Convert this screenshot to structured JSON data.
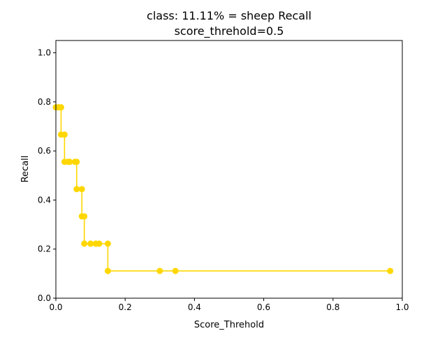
{
  "chart_data": {
    "type": "line",
    "title": "class: 11.11% = sheep Recall",
    "subtitle": "score_threhold=0.5",
    "xlabel": "Score_Threhold",
    "ylabel": "Recall",
    "xlim": [
      0,
      1.0
    ],
    "ylim": [
      0,
      1.05
    ],
    "x_ticks": [
      0.0,
      0.2,
      0.4,
      0.6,
      0.8,
      1.0
    ],
    "x_tick_labels": [
      "0.0",
      "0.2",
      "0.4",
      "0.6",
      "0.8",
      "1.0"
    ],
    "y_ticks": [
      0.0,
      0.2,
      0.4,
      0.6,
      0.8,
      1.0
    ],
    "y_tick_labels": [
      "0.0",
      "0.2",
      "0.4",
      "0.6",
      "0.8",
      "1.0"
    ],
    "grid": false,
    "series": [
      {
        "color": "#FFD700",
        "marker": "circle",
        "x": [
          0.0,
          0.008,
          0.015,
          0.015,
          0.025,
          0.025,
          0.035,
          0.04,
          0.055,
          0.06,
          0.06,
          0.075,
          0.075,
          0.082,
          0.082,
          0.1,
          0.115,
          0.125,
          0.15,
          0.15,
          0.3,
          0.345,
          0.965
        ],
        "y": [
          0.7778,
          0.7778,
          0.7778,
          0.6667,
          0.6667,
          0.5556,
          0.5556,
          0.5556,
          0.5556,
          0.5556,
          0.4444,
          0.4444,
          0.3333,
          0.3333,
          0.2222,
          0.2222,
          0.2222,
          0.2222,
          0.2222,
          0.1111,
          0.1111,
          0.1111,
          0.1111
        ]
      }
    ]
  }
}
